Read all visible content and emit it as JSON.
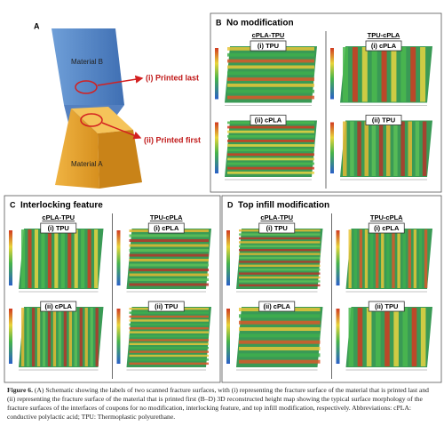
{
  "schematic": {
    "label": "A",
    "upper_block": "Material B",
    "lower_block": "Material A",
    "upper_callout": "(i) Printed last",
    "lower_callout": "(ii) Printed first"
  },
  "height_maps": [
    {
      "label": "B",
      "title": "No modification",
      "columns": [
        {
          "header": "cPLA-TPU",
          "maps": [
            "(i) TPU",
            "(ii) cPLA"
          ]
        },
        {
          "header": "TPU-cPLA",
          "maps": [
            "(i) cPLA",
            "(ii) TPU"
          ]
        }
      ]
    },
    {
      "label": "C",
      "title": "Interlocking feature",
      "columns": [
        {
          "header": "cPLA-TPU",
          "maps": [
            "(i) TPU",
            "(ii) cPLA"
          ]
        },
        {
          "header": "TPU-cPLA",
          "maps": [
            "(i) cPLA",
            "(ii) TPU"
          ]
        }
      ]
    },
    {
      "label": "D",
      "title": "Top infill modification",
      "columns": [
        {
          "header": "cPLA-TPU",
          "maps": [
            "(i) TPU",
            "(ii) cPLA"
          ]
        },
        {
          "header": "TPU-cPLA",
          "maps": [
            "(i) cPLA",
            "(ii) TPU"
          ]
        }
      ]
    }
  ],
  "caption": {
    "label": "Figure 6.",
    "text": "(A) Schematic showing the labels of two scanned fracture surfaces, with (i) representing the fracture surface of the material that is printed last and (ii) representing the fracture surface of the material that is printed first (B–D) 3D reconstructed height map showing the typical surface morphology of the fracture surfaces of the interfaces of coupons for no modification, interlocking feature, and top infill modification, respectively. Abbreviations: cPLA: conductive polylactic acid; TPU: Thermoplastic polyurethane."
  }
}
